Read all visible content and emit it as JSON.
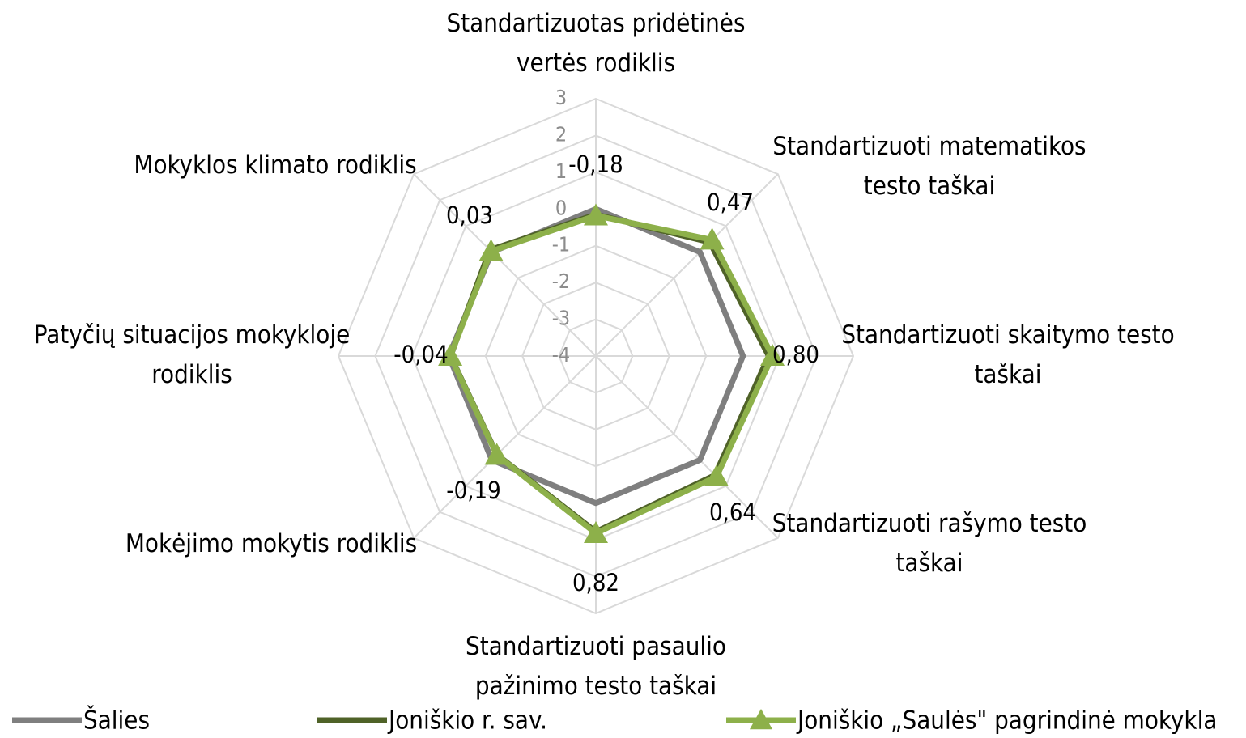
{
  "chart_data": {
    "type": "radar",
    "categories": [
      "Standartizuotas pridėtinės vertės rodiklis",
      "Standartizuoti matematikos testo taškai",
      "Standartizuoti skaitymo testo taškai",
      "Standartizuoti rašymo testo taškai",
      "Standartizuoti pasaulio pažinimo testo taškai",
      "Mokėjimo mokytis rodiklis",
      "Patyčių situacijos mokykloje rodiklis",
      "Mokyklos klimato rodiklis"
    ],
    "series": [
      {
        "name": "Šalies",
        "color": "#7f7f7f",
        "values": [
          0,
          0,
          0,
          0,
          0,
          0,
          0,
          0
        ]
      },
      {
        "name": "Joniškio r. sav.",
        "color": "#4f6228",
        "values": [
          -0.15,
          0.38,
          0.7,
          0.58,
          0.78,
          -0.2,
          -0.05,
          0.08
        ]
      },
      {
        "name": "Joniškio „Saulės\" pagrindinė mokykla",
        "color": "#8db04a",
        "marker": "triangle",
        "values": [
          -0.18,
          0.47,
          0.8,
          0.64,
          0.82,
          -0.19,
          -0.04,
          0.03
        ],
        "value_labels": [
          "-0,18",
          "0,47",
          "0,80",
          "0,64",
          "0,82",
          "-0,19",
          "-0,04",
          "0,03"
        ]
      }
    ],
    "ylim": [
      -4,
      3
    ],
    "yticks": [
      -4,
      -3,
      -2,
      -1,
      0,
      1,
      2,
      3
    ],
    "grid": true,
    "legend": "bottom"
  }
}
